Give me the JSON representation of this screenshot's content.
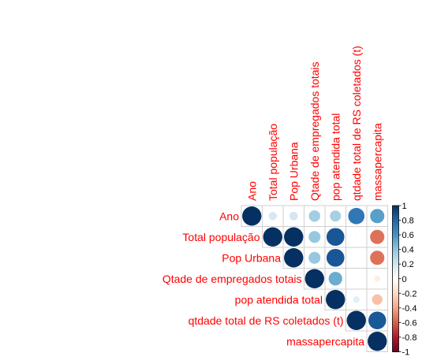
{
  "chart_data": {
    "type": "heatmap",
    "variables": [
      "Ano",
      "Total população",
      "Pop Urbana",
      "Qtade de empregados totais",
      "pop atendida total",
      "qtdade total de RS coletados (t)",
      "massapercapita"
    ],
    "correlations": [
      [
        1,
        0.18,
        0.19,
        0.35,
        0.33,
        0.72,
        0.55
      ],
      [
        0.18,
        1,
        1,
        0.38,
        0.86,
        0.02,
        -0.55
      ],
      [
        0.19,
        1,
        1,
        0.38,
        0.86,
        0.02,
        -0.55
      ],
      [
        0.35,
        0.38,
        0.38,
        1,
        0.5,
        0.02,
        -0.1
      ],
      [
        0.33,
        0.86,
        0.86,
        0.5,
        1,
        0.12,
        -0.3
      ],
      [
        0.72,
        0.02,
        0.02,
        0.02,
        0.12,
        1,
        0.85
      ],
      [
        0.55,
        -0.55,
        -0.55,
        -0.1,
        -0.3,
        0.85,
        1
      ]
    ],
    "layout": "upper-triangle",
    "method": "circle",
    "colorbar": {
      "range": [
        -1,
        1
      ],
      "ticks": [
        "1",
        "0.8",
        "0.6",
        "0.4",
        "0.2",
        "0",
        "-0.2",
        "-0.4",
        "-0.6",
        "-0.8",
        "-1"
      ],
      "placement": "right"
    },
    "label_color": "#ff0000",
    "palette": [
      "#67001f",
      "#b2182b",
      "#d6604d",
      "#f4a582",
      "#fddbc7",
      "#ffffff",
      "#d1e5f0",
      "#92c5de",
      "#4393c3",
      "#2166ac",
      "#053061"
    ]
  }
}
